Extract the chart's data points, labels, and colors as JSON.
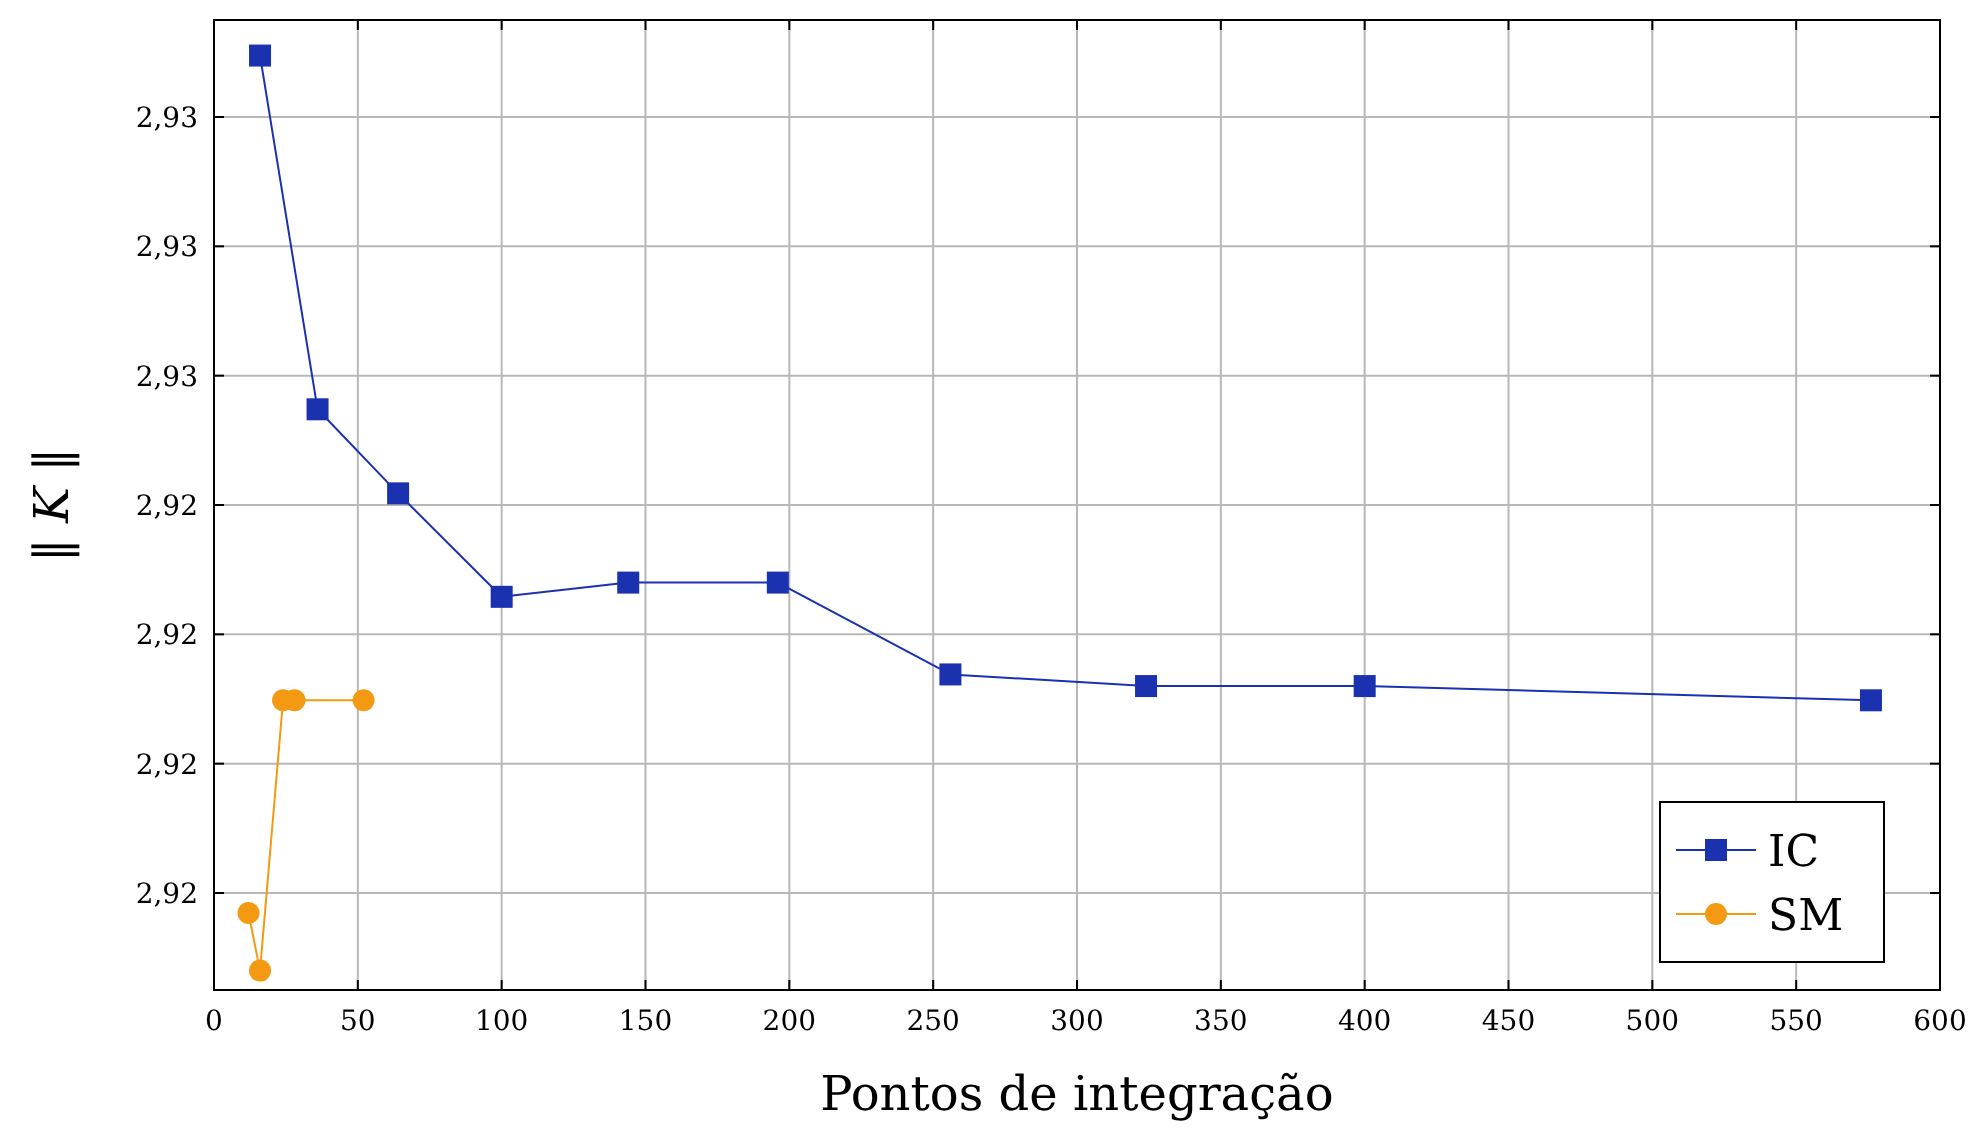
{
  "chart_data": {
    "type": "line",
    "xlabel": "Pontos de integração",
    "ylabel": "‖ K ‖",
    "xlim": [
      0,
      600
    ],
    "xticks": [
      0,
      50,
      100,
      150,
      200,
      250,
      300,
      350,
      400,
      450,
      500,
      550,
      600
    ],
    "ylim": [
      2.9165,
      2.9315
    ],
    "yticks": [
      {
        "value": 2.918,
        "label": "2,92"
      },
      {
        "value": 2.92,
        "label": "2,92"
      },
      {
        "value": 2.922,
        "label": "2,92"
      },
      {
        "value": 2.924,
        "label": "2,92"
      },
      {
        "value": 2.926,
        "label": "2,93"
      },
      {
        "value": 2.928,
        "label": "2,93"
      },
      {
        "value": 2.93,
        "label": "2,93"
      }
    ],
    "grid": true,
    "legend": "bottom right",
    "line_style": "solid",
    "series": [
      {
        "name": "IC",
        "color": "#1a32b0",
        "marker": "square",
        "x": [
          16,
          36,
          64,
          100,
          144,
          196,
          256,
          324,
          400,
          576
        ],
        "values": [
          2.93095,
          2.92548,
          2.92418,
          2.92258,
          2.9228,
          2.9228,
          2.92138,
          2.9212,
          2.9212,
          2.92098
        ]
      },
      {
        "name": "SM",
        "color": "#f39a12",
        "marker": "circle",
        "x": [
          12,
          16,
          24,
          28,
          52
        ],
        "values": [
          2.91769,
          2.9168,
          2.92098,
          2.92098,
          2.92098
        ]
      }
    ]
  }
}
